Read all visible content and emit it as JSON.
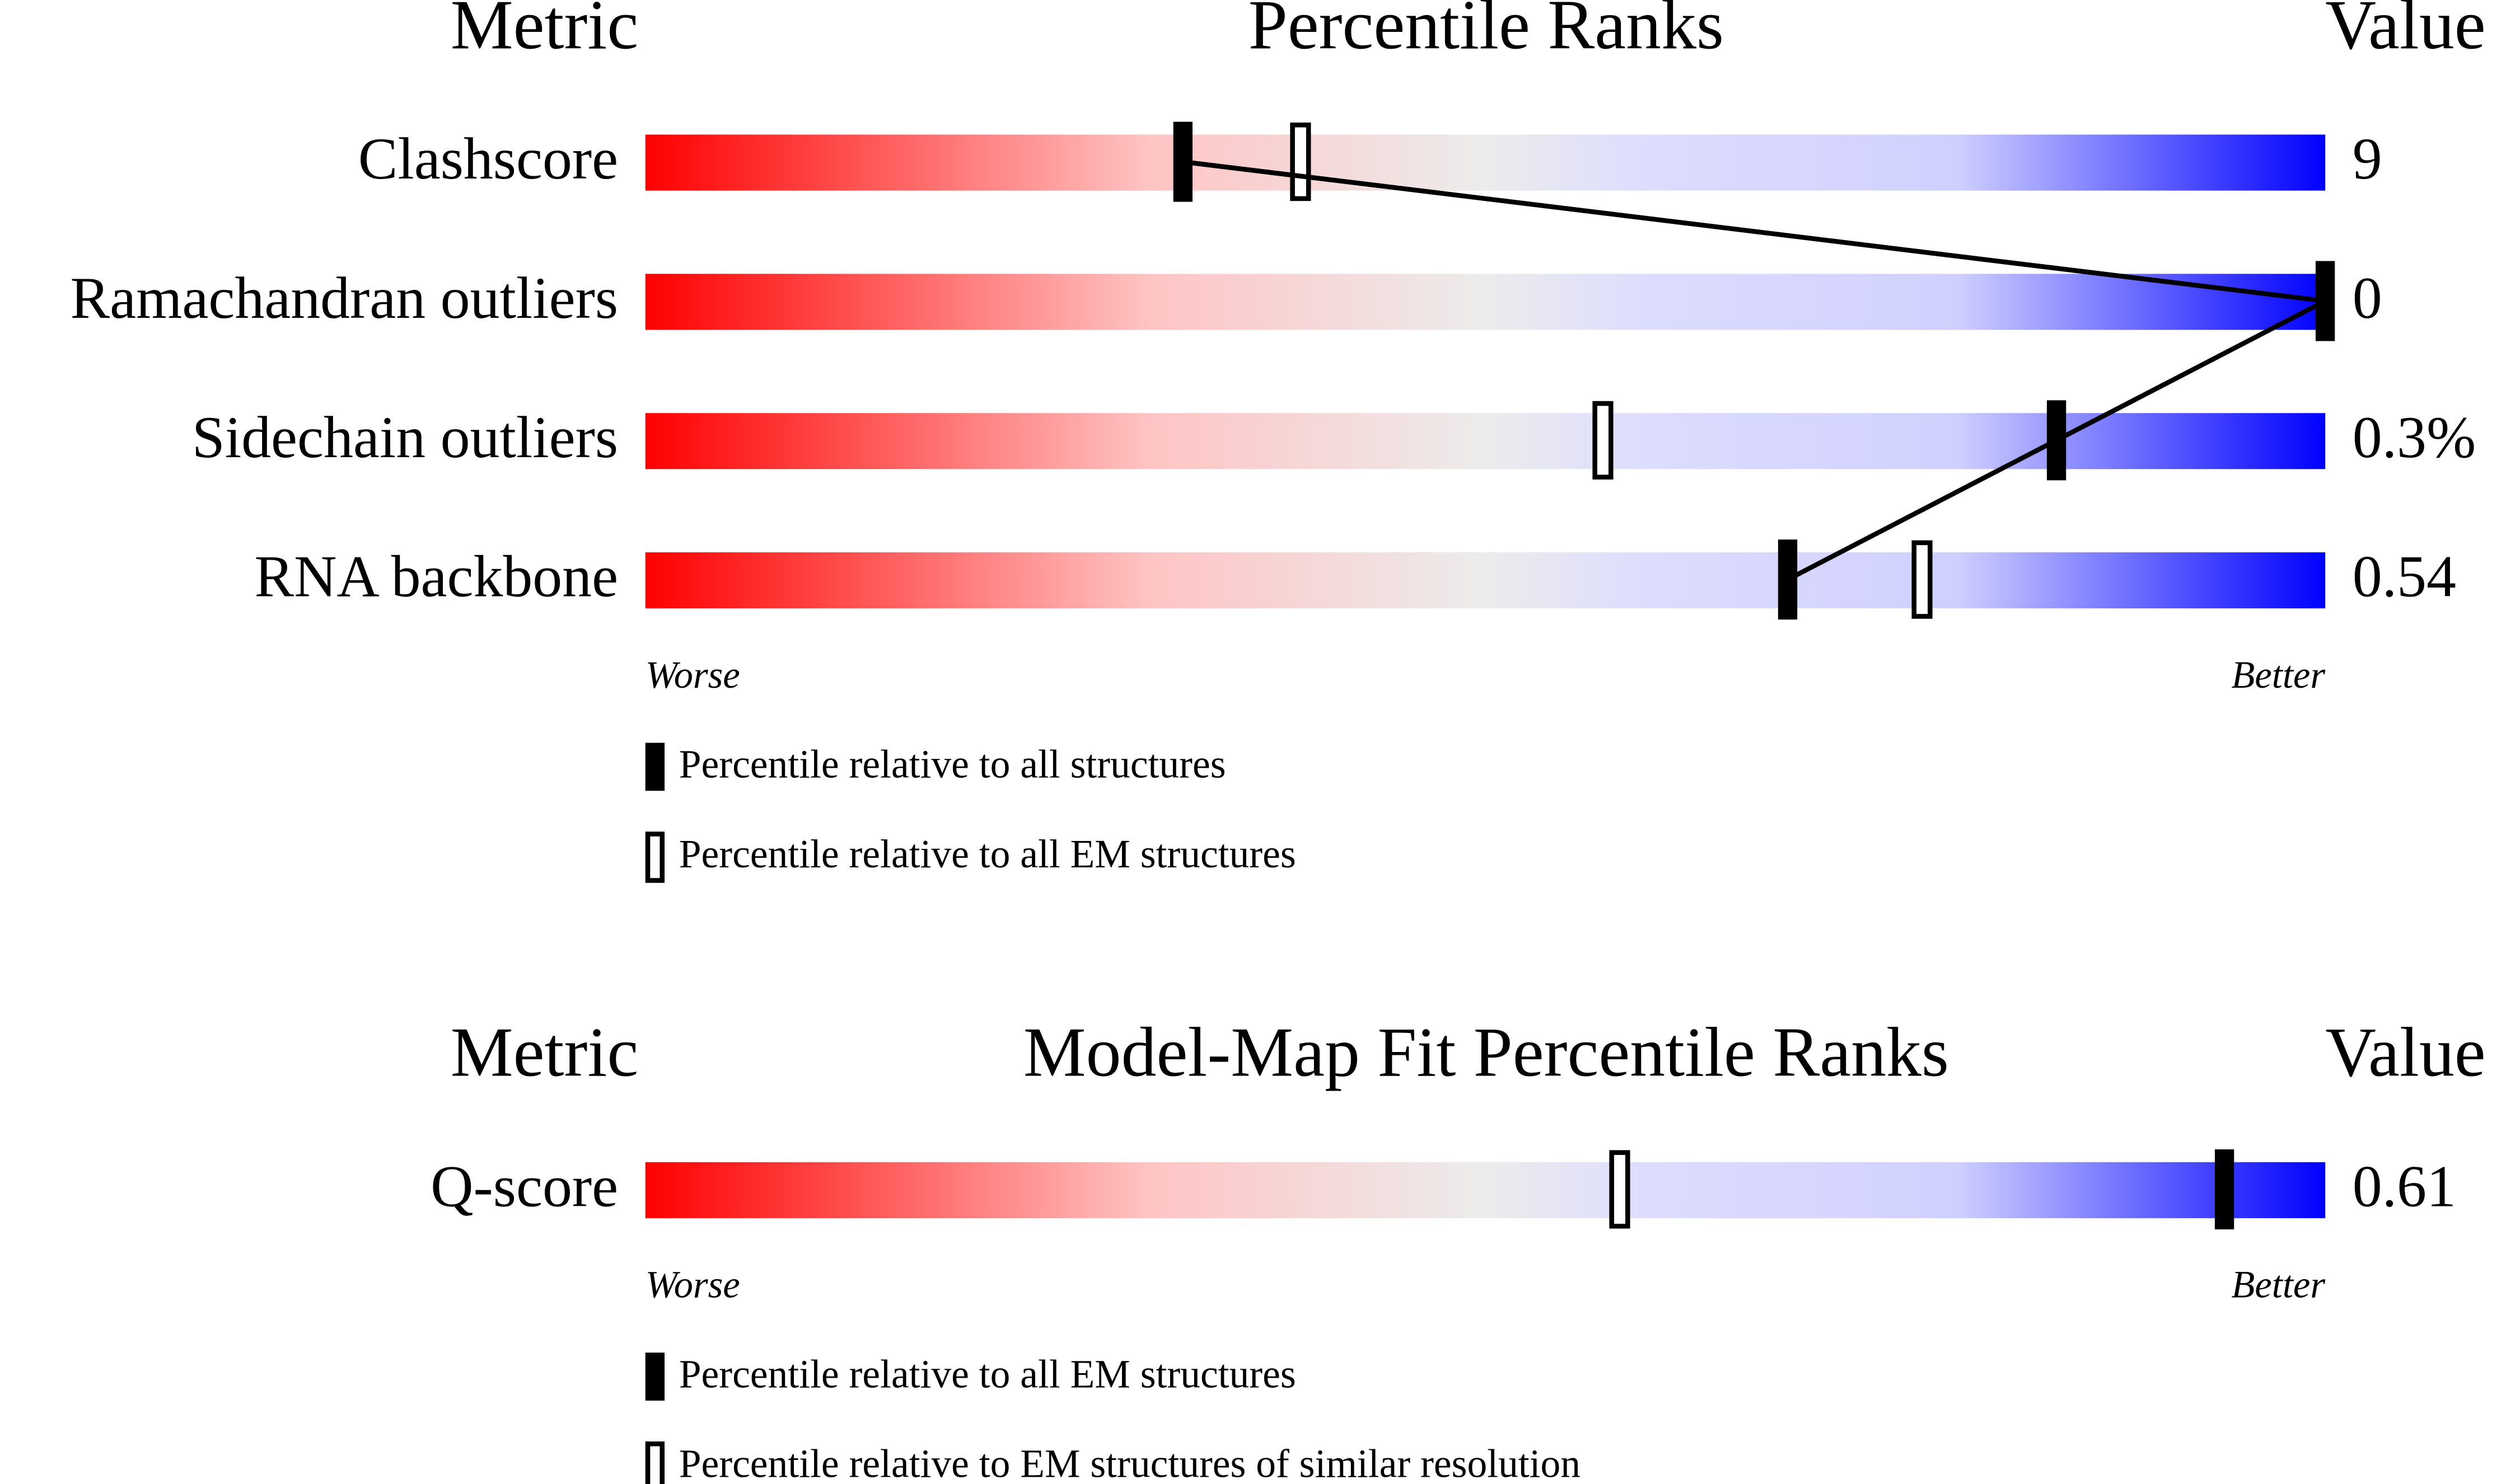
{
  "panels": [
    {
      "headers": {
        "metric": "Metric",
        "title": "Percentile Ranks",
        "value": "Value"
      },
      "rows": [
        {
          "label": "Clashscore",
          "value": "9",
          "percentile_solid": 32,
          "percentile_open": 39
        },
        {
          "label": "Ramachandran outliers",
          "value": "0",
          "percentile_solid": 100
        },
        {
          "label": "Sidechain outliers",
          "value": "0.3%",
          "percentile_solid": 84,
          "percentile_open": 57
        },
        {
          "label": "RNA backbone",
          "value": "0.54",
          "percentile_solid": 68,
          "percentile_open": 76
        }
      ],
      "worse": "Worse",
      "better": "Better",
      "legend": {
        "solid": "Percentile relative to all structures",
        "open": "Percentile relative to all EM structures"
      }
    },
    {
      "headers": {
        "metric": "Metric",
        "title": "Model-Map Fit Percentile Ranks",
        "value": "Value"
      },
      "rows": [
        {
          "label": "Q-score",
          "value": "0.61",
          "percentile_solid": 94,
          "percentile_open": 58
        }
      ],
      "worse": "Worse",
      "better": "Better",
      "legend": {
        "solid": "Percentile relative to all EM structures",
        "open": "Percentile relative to EM structures of similar resolution"
      }
    }
  ]
}
